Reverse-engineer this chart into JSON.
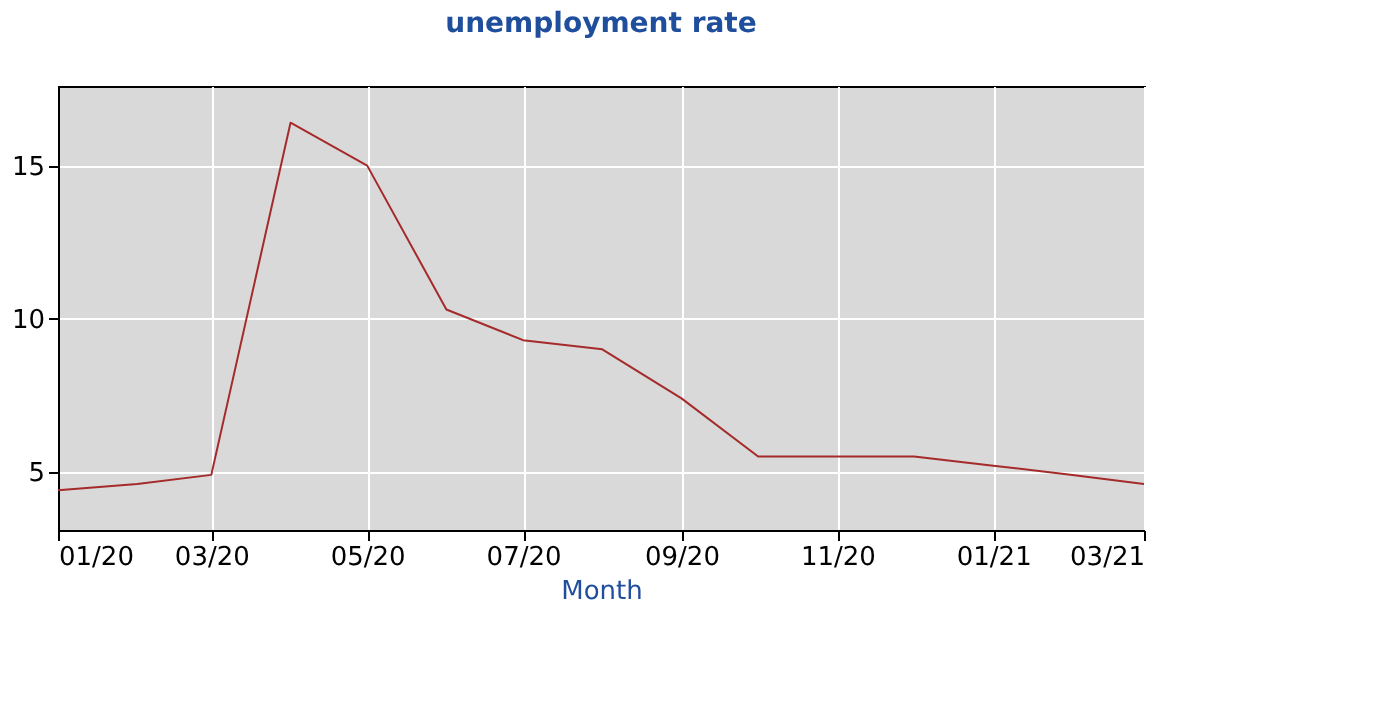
{
  "chart_data": {
    "type": "line",
    "title": "unemployment rate",
    "xlabel": "Month",
    "x": [
      "2020-01",
      "2020-02",
      "2020-03",
      "2020-04",
      "2020-05",
      "2020-06",
      "2020-07",
      "2020-08",
      "2020-09",
      "2020-10",
      "2020-11",
      "2020-12",
      "2021-01",
      "2021-02",
      "2021-03"
    ],
    "series": [
      {
        "color": "#a52a2a",
        "values": [
          4.4,
          4.6,
          4.9,
          16.4,
          15.0,
          10.3,
          9.3,
          9.0,
          7.4,
          5.5,
          5.5,
          5.5,
          5.2,
          4.9,
          4.6
        ]
      }
    ],
    "xlim": [
      "2020-01",
      "2021-03"
    ],
    "xticks": [
      {
        "value": "2020-01",
        "label": "01/20"
      },
      {
        "value": "2020-03",
        "label": "03/20"
      },
      {
        "value": "2020-05",
        "label": "05/20"
      },
      {
        "value": "2020-07",
        "label": "07/20"
      },
      {
        "value": "2020-09",
        "label": "09/20"
      },
      {
        "value": "2020-11",
        "label": "11/20"
      },
      {
        "value": "2021-01",
        "label": "01/21"
      },
      {
        "value": "2021-03",
        "label": "03/21"
      }
    ],
    "ylim": [
      3.1,
      17.6
    ],
    "yticks": [
      5,
      10,
      15
    ],
    "grid": true,
    "legend": false,
    "marker": "none",
    "line_style": "solid"
  }
}
